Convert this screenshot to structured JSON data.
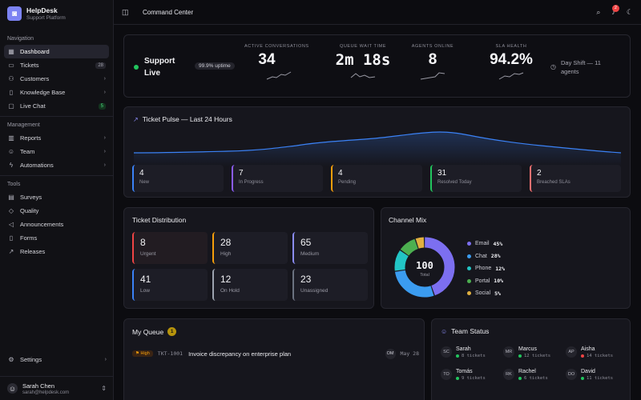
{
  "app": {
    "name": "HelpDesk",
    "subtitle": "Support Platform",
    "logo_icon": "headset-icon",
    "accent": "#7c83f3"
  },
  "sidebar": {
    "sections": [
      {
        "label": "Navigation",
        "items": [
          {
            "label": "Dashboard",
            "icon": "grid-icon",
            "active": true
          },
          {
            "label": "Tickets",
            "icon": "ticket-icon",
            "badge": "28"
          },
          {
            "label": "Customers",
            "icon": "users-icon",
            "chevron": true
          },
          {
            "label": "Knowledge Base",
            "icon": "book-icon",
            "chevron": true
          },
          {
            "label": "Live Chat",
            "icon": "chat-icon",
            "badge": "5"
          }
        ]
      },
      {
        "label": "Management",
        "items": [
          {
            "label": "Reports",
            "icon": "chart-icon",
            "chevron": true
          },
          {
            "label": "Team",
            "icon": "team-icon",
            "chevron": true
          },
          {
            "label": "Automations",
            "icon": "bolt-icon",
            "chevron": true
          }
        ]
      },
      {
        "label": "Tools",
        "items": [
          {
            "label": "Surveys",
            "icon": "clipboard-icon"
          },
          {
            "label": "Quality",
            "icon": "shield-icon"
          },
          {
            "label": "Announcements",
            "icon": "megaphone-icon"
          },
          {
            "label": "Forms",
            "icon": "form-icon"
          },
          {
            "label": "Releases",
            "icon": "rocket-icon"
          }
        ]
      }
    ],
    "settings": "Settings",
    "user": {
      "name": "Sarah Chen",
      "email": "sarah@helpdesk.com"
    }
  },
  "topbar": {
    "title": "Command Center",
    "notification_count": "2"
  },
  "hero": {
    "title": "Support Live",
    "status_color": "#22c55e",
    "uptime": "99.9% uptime",
    "kpis": [
      {
        "label": "ACTIVE CONVERSATIONS",
        "value": "34"
      },
      {
        "label": "QUEUE WAIT TIME",
        "value": "2m 18s"
      },
      {
        "label": "AGENTS ONLINE",
        "value": "8"
      },
      {
        "label": "SLA HEALTH",
        "value": "94.2%"
      }
    ],
    "shift": "Day Shift — 11 agents"
  },
  "pulse": {
    "title": "Ticket Pulse — Last 24 Hours",
    "stats": [
      {
        "value": "4",
        "label": "New",
        "color": "#3b82f6"
      },
      {
        "value": "7",
        "label": "In Progress",
        "color": "#8b5cf6"
      },
      {
        "value": "4",
        "label": "Pending",
        "color": "#f59e0b"
      },
      {
        "value": "31",
        "label": "Resolved Today",
        "color": "#22c55e"
      },
      {
        "value": "2",
        "label": "Breached SLAs",
        "color": "#f87171"
      }
    ]
  },
  "distribution": {
    "title": "Ticket Distribution",
    "items": [
      {
        "value": "8",
        "label": "Urgent",
        "color": "#ef4444"
      },
      {
        "value": "28",
        "label": "High",
        "color": "#f59e0b"
      },
      {
        "value": "65",
        "label": "Medium",
        "color": "#8b8cf6"
      },
      {
        "value": "41",
        "label": "Low",
        "color": "#3b82f6"
      },
      {
        "value": "12",
        "label": "On Hold",
        "color": "#9ca3af"
      },
      {
        "value": "23",
        "label": "Unassigned",
        "color": "#6b7280"
      }
    ]
  },
  "channel": {
    "title": "Channel Mix",
    "total": "100",
    "total_label": "Total"
  },
  "chart_data": {
    "type": "pie",
    "title": "Channel Mix",
    "categories": [
      "Email",
      "Chat",
      "Phone",
      "Portal",
      "Social"
    ],
    "values": [
      45,
      28,
      12,
      10,
      5
    ],
    "labels": [
      "45%",
      "28%",
      "12%",
      "10%",
      "5%"
    ],
    "colors": [
      "#7c6ff0",
      "#3b9cf0",
      "#22c5c5",
      "#4caf50",
      "#e0b040"
    ]
  },
  "queue": {
    "title": "My Queue",
    "count": "1",
    "tickets": [
      {
        "priority": "High",
        "id": "TKT-1001",
        "title": "Invoice discrepancy on enterprise plan",
        "assignee": "OM",
        "date": "May 28"
      }
    ]
  },
  "team": {
    "title": "Team Status",
    "members": [
      {
        "initials": "SC",
        "name": "Sarah",
        "tickets": "8 tickets",
        "status_color": "#22c55e"
      },
      {
        "initials": "MR",
        "name": "Marcus",
        "tickets": "12 tickets",
        "status_color": "#22c55e"
      },
      {
        "initials": "AP",
        "name": "Aisha",
        "tickets": "14 tickets",
        "status_color": "#ef4444"
      },
      {
        "initials": "TO",
        "name": "Tomás",
        "tickets": "9 tickets",
        "status_color": "#22c55e"
      },
      {
        "initials": "RK",
        "name": "Rachel",
        "tickets": "6 tickets",
        "status_color": "#22c55e"
      },
      {
        "initials": "DO",
        "name": "David",
        "tickets": "11 tickets",
        "status_color": "#22c55e"
      }
    ]
  }
}
